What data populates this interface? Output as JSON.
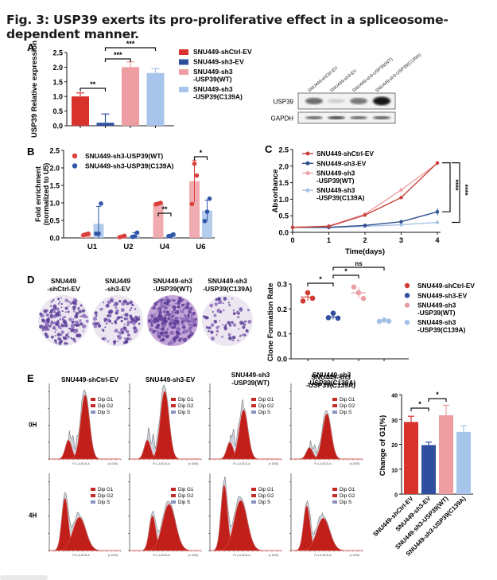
{
  "figure": {
    "title": "Fig. 3: USP39 exerts its pro-proliferative effect in a spliceosome-dependent manner."
  },
  "colors": {
    "shCtrl_EV": "#d7322c",
    "sh3_EV": "#2f4f9e",
    "sh3_WT": "#ee9ea3",
    "sh3_C139A": "#a7c4ea"
  },
  "groups": [
    "SNU449-shCtrl-EV",
    "SNU449-sh3-EV",
    "SNU449-sh3-USP39(WT)",
    "SNU449-sh3-USP39(C139A)"
  ],
  "legend_labels": [
    [
      "SNU449-shCtrl-EV"
    ],
    [
      "SNU449-sh3-EV"
    ],
    [
      "SNU449-sh3",
      "-USP39(WT)"
    ],
    [
      "SNU449-sh3",
      "-USP39(C139A)"
    ]
  ],
  "panel_A_blot": {
    "lane_labels": [
      "SNU449-shCtrl-EV",
      "SNU449-sh3-EV",
      "SNU449-sh3-USP39(WT)",
      "SNU449-sh3-USP39(C139A)"
    ],
    "rows": [
      {
        "label": "USP39",
        "intensities": [
          0.55,
          0.1,
          0.5,
          0.95
        ]
      },
      {
        "label": "GAPDH",
        "intensities": [
          0.6,
          0.75,
          0.6,
          0.65
        ]
      }
    ]
  },
  "panel_D_images": {
    "labels": [
      [
        "SNU449",
        "-shCtrl-EV"
      ],
      [
        "SNU449",
        "-sh3-EV"
      ],
      [
        "SNU449-sh3",
        "-USP39(WT)"
      ],
      [
        "SNU449-sh3",
        "-USP39(C139A)"
      ]
    ],
    "colony_density": [
      0.55,
      0.3,
      0.85,
      0.12
    ]
  },
  "panel_E_flow": {
    "columns": [
      [
        "SNU449-shCtrl-EV"
      ],
      [
        "SNU449-sh3-EV"
      ],
      [
        "SNU449-sh3",
        "-USP39(WT)"
      ],
      [
        "SNU449-sh3",
        "-USP39(C139A)"
      ]
    ],
    "rows": [
      "0H",
      "4H"
    ],
    "legend": [
      "Dip G1",
      "Dip G2",
      "Dip S"
    ],
    "xlabel": "FL1-A ECD-A",
    "x_unit": "(x 1000)"
  },
  "chart_data": [
    {
      "panel": "A",
      "type": "bar",
      "title": "",
      "xlabel": "",
      "ylabel": "USP39 Relative expression",
      "categories": [
        "SNU449-shCtrl-EV",
        "SNU449-sh3-EV",
        "SNU449-sh3-USP39(WT)",
        "SNU449-sh3-USP39(C139A)"
      ],
      "values": [
        1.0,
        0.1,
        2.0,
        1.8
      ],
      "errors": [
        0.12,
        0.3,
        0.18,
        0.15
      ],
      "ylim": [
        0,
        2.5
      ],
      "yticks": [
        "0.0",
        "0.5",
        "1.0",
        "1.5",
        "2.0",
        "2.5"
      ],
      "significance": [
        {
          "from": 0,
          "to": 1,
          "label": "**"
        },
        {
          "from": 1,
          "to": 2,
          "label": "***"
        },
        {
          "from": 1,
          "to": 3,
          "label": "***"
        }
      ],
      "legend": "right"
    },
    {
      "panel": "B",
      "type": "bar",
      "xlabel": "",
      "ylabel": "Fold enrichment (normalized to U5)",
      "categories": [
        "U1",
        "U2",
        "U4",
        "U6"
      ],
      "series": [
        {
          "name": "SNU449-sh3-USP39(WT)",
          "values": [
            0.1,
            0.04,
            0.98,
            1.62
          ],
          "errors": [
            0.03,
            0.03,
            0.03,
            0.6
          ],
          "points": [
            [
              0.08,
              0.1,
              0.12
            ],
            [
              0.02,
              0.04,
              0.06
            ],
            [
              0.96,
              0.98,
              1.0
            ],
            [
              0.97,
              2.12,
              1.78
            ]
          ]
        },
        {
          "name": "SNU449-sh3-USP39(C139A)",
          "values": [
            0.4,
            0.07,
            0.07,
            0.78
          ],
          "errors": [
            0.5,
            0.08,
            0.03,
            0.3
          ],
          "points": [
            [
              0.12,
              0.12,
              0.98
            ],
            [
              0.03,
              0.04,
              0.15
            ],
            [
              0.05,
              0.06,
              0.1
            ],
            [
              0.48,
              0.75,
              1.12
            ]
          ]
        }
      ],
      "ylim": [
        0,
        2.5
      ],
      "yticks": [
        "0.0",
        "0.5",
        "1.0",
        "1.5",
        "2.0",
        "2.5"
      ],
      "significance": [
        {
          "category": "U4",
          "label": "**"
        },
        {
          "category": "U6",
          "label": "*"
        }
      ],
      "legend": "top-left"
    },
    {
      "panel": "C",
      "type": "line",
      "xlabel": "Time(days)",
      "ylabel": "Absorbance",
      "x": [
        0,
        1,
        2,
        3,
        4
      ],
      "series": [
        {
          "name": "SNU449-shCtrl-EV",
          "values": [
            0.15,
            0.18,
            0.52,
            1.05,
            2.1
          ],
          "errors": [
            0.01,
            0.01,
            0.02,
            0.04,
            0.02
          ]
        },
        {
          "name": "SNU449-sh3-EV",
          "values": [
            0.15,
            0.15,
            0.21,
            0.32,
            0.62
          ],
          "errors": [
            0.01,
            0.01,
            0.02,
            0.03,
            0.1
          ]
        },
        {
          "name": "SNU449-sh3-USP39(WT)",
          "values": [
            0.15,
            0.19,
            0.55,
            1.28,
            2.08
          ],
          "errors": [
            0.01,
            0.01,
            0.02,
            0.05,
            0.02
          ]
        },
        {
          "name": "SNU449-sh3-USP39(C139A)",
          "values": [
            0.15,
            0.14,
            0.18,
            0.23,
            0.3
          ],
          "errors": [
            0.01,
            0.01,
            0.01,
            0.02,
            0.02
          ]
        }
      ],
      "xlim": [
        0,
        4
      ],
      "ylim": [
        0,
        2.5
      ],
      "xticks": [
        "0",
        "1",
        "2",
        "3",
        "4"
      ],
      "yticks": [
        "0.0",
        "0.5",
        "1.0",
        "1.5",
        "2.0",
        "2.5"
      ],
      "significance": [
        {
          "label": "****"
        },
        {
          "label": "****"
        }
      ],
      "legend": "top-left"
    },
    {
      "panel": "D",
      "type": "scatter",
      "xlabel": "",
      "ylabel": "Clone Formation Rate",
      "categories": [
        "SNU449-shCtrl-EV",
        "SNU449-sh3-EV",
        "SNU449-sh3-USP39(WT)",
        "SNU449-sh3-USP39(C139A)"
      ],
      "means": [
        0.248,
        0.168,
        0.265,
        0.152
      ],
      "errors": [
        0.015,
        0.01,
        0.022,
        0.003
      ],
      "points": [
        [
          0.232,
          0.265,
          0.243
        ],
        [
          0.165,
          0.183,
          0.163
        ],
        [
          0.288,
          0.265,
          0.242
        ],
        [
          0.15,
          0.155,
          0.151
        ]
      ],
      "ylim": [
        0,
        0.3
      ],
      "yticks": [
        "0.0",
        "0.1",
        "0.2",
        "0.3"
      ],
      "significance": [
        {
          "from": 0,
          "to": 1,
          "label": "*"
        },
        {
          "from": 1,
          "to": 2,
          "label": "*"
        },
        {
          "from": 1,
          "to": 3,
          "label": "ns"
        }
      ],
      "legend": "right"
    },
    {
      "panel": "E",
      "type": "bar",
      "xlabel": "",
      "ylabel": "Change of G1(%)",
      "categories": [
        "SNU449-shCtrl-EV",
        "SNU449-sh3-EV",
        "SNU449-sh3-USP39(WT)",
        "SNU449-sh3-USP39(C139A)"
      ],
      "values": [
        29,
        19.7,
        31.7,
        25
      ],
      "errors": [
        2.3,
        1.2,
        4,
        2.5
      ],
      "ylim": [
        0,
        40
      ],
      "yticks": [
        "0",
        "10",
        "20",
        "30",
        "40"
      ],
      "significance": [
        {
          "from": 0,
          "to": 1,
          "label": "*"
        },
        {
          "from": 1,
          "to": 2,
          "label": "*"
        }
      ]
    }
  ]
}
